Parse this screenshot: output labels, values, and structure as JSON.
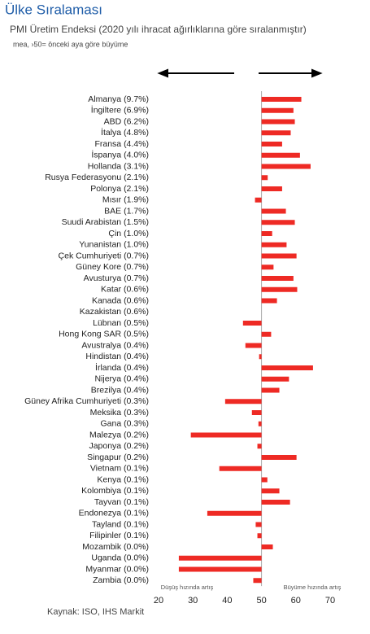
{
  "chart_data": {
    "type": "bar",
    "orientation": "horizontal",
    "title": "Ülke Sıralaması",
    "subtitle": "PMI Üretim Endeksi (2020 yılı ihracat ağırlıklarına göre sıralanmıştır)",
    "note": "mea, ›50= önceki aya göre büyüme",
    "left_label": "Düşüş hızında artış",
    "right_label": "Büyüme hızında artış",
    "source": "Kaynak: ISO, IHS Markit",
    "color": "#ee2a24",
    "baseline": 50,
    "xlim": [
      20,
      70
    ],
    "xticks": [
      20,
      30,
      40,
      50,
      60,
      70
    ],
    "categories": [
      "Almanya (9.7%)",
      "İngiltere (6.9%)",
      "ABD (6.2%)",
      "İtalya (4.8%)",
      "Fransa (4.4%)",
      "İspanya (4.0%)",
      "Hollanda (3.1%)",
      "Rusya Federasyonu (2.1%)",
      "Polonya (2.1%)",
      "Mısır (1.9%)",
      "BAE (1.7%)",
      "Suudi Arabistan (1.5%)",
      "Çin (1.0%)",
      "Yunanistan (1.0%)",
      "Çek Cumhuriyeti (0.7%)",
      "Güney Kore (0.7%)",
      "Avusturya (0.7%)",
      "Katar (0.6%)",
      "Kanada (0.6%)",
      "Kazakistan (0.6%)",
      "Lübnan (0.5%)",
      "Hong Kong SAR (0.5%)",
      "Avustralya (0.4%)",
      "Hindistan (0.4%)",
      "İrlanda (0.4%)",
      "Nijerya (0.4%)",
      "Brezilya (0.4%)",
      "Güney Afrika Cumhuriyeti (0.3%)",
      "Meksika (0.3%)",
      "Gana (0.3%)",
      "Malezya (0.2%)",
      "Japonya (0.2%)",
      "Singapur (0.2%)",
      "Vietnam (0.1%)",
      "Kenya (0.1%)",
      "Kolombiya (0.1%)",
      "Tayvan (0.1%)",
      "Endonezya (0.1%)",
      "Tayland (0.1%)",
      "Filipinler (0.1%)",
      "Mozambik (0.0%)",
      "Uganda (0.0%)",
      "Myanmar (0.0%)",
      "Zambia (0.0%)"
    ],
    "values": [
      61.6,
      59.3,
      59.7,
      58.5,
      56.0,
      61.2,
      64.3,
      51.8,
      56.0,
      48.1,
      57.1,
      59.7,
      53.1,
      57.3,
      60.2,
      53.5,
      59.3,
      60.4,
      54.5,
      50.0,
      44.6,
      52.8,
      45.3,
      49.3,
      65.0,
      58.0,
      55.2,
      39.4,
      47.2,
      49.1,
      29.4,
      48.8,
      60.2,
      37.7,
      51.7,
      55.2,
      58.3,
      34.2,
      48.3,
      48.8,
      53.3,
      25.9,
      25.9,
      47.6
    ]
  }
}
